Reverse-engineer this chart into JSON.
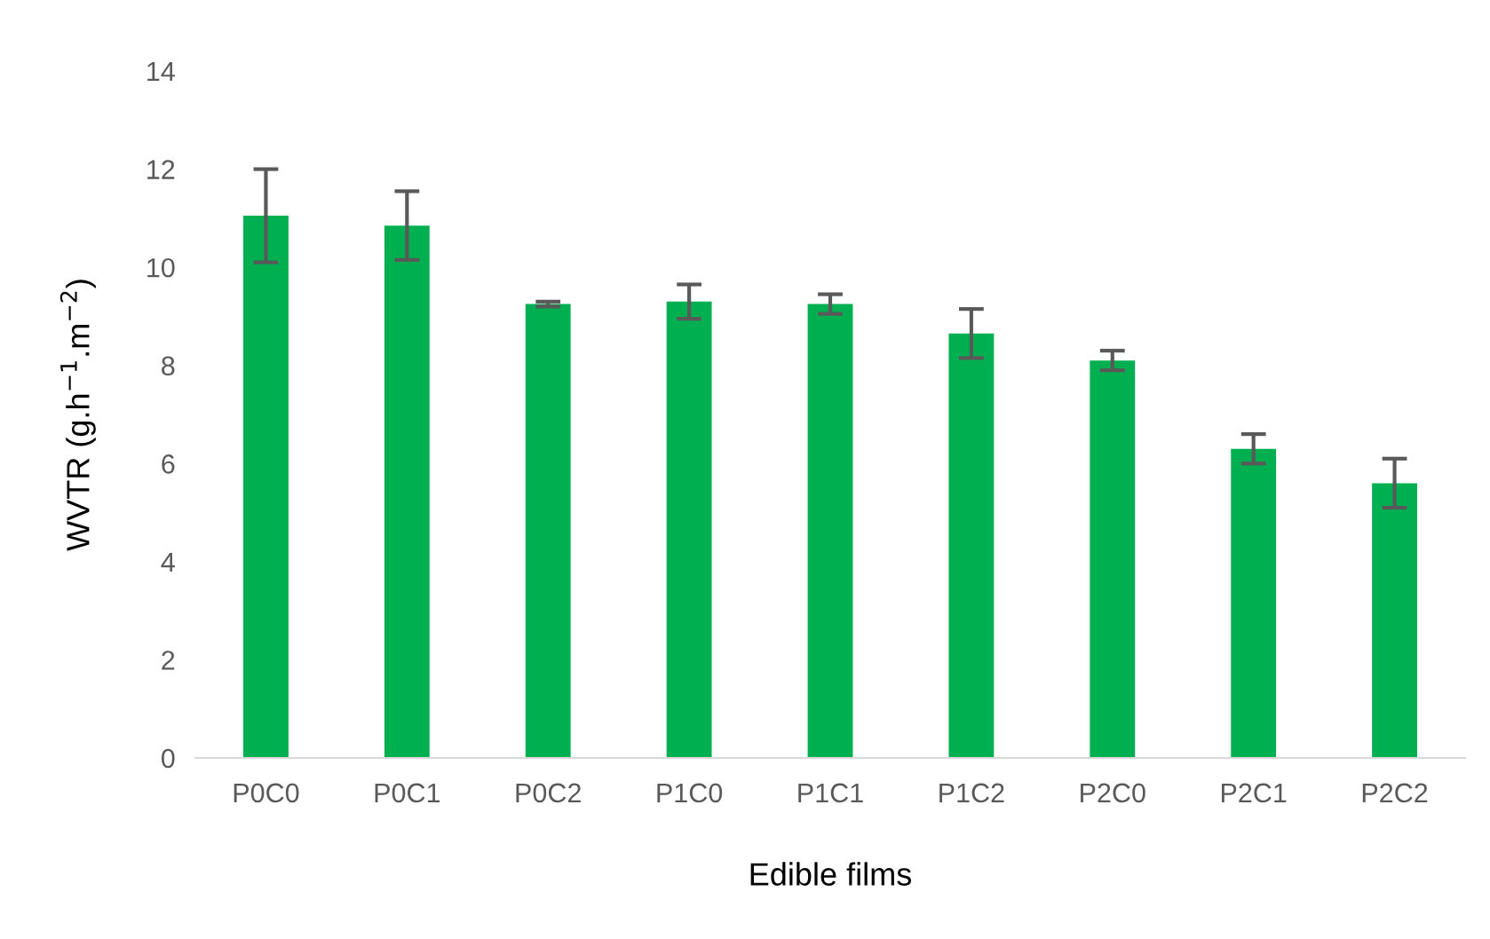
{
  "chart_data": {
    "type": "bar",
    "xlabel": "Edible films",
    "ylabel": "WVTR (g.h$^{−1}$.m$^{−2}$)",
    "categories": [
      "P0C0",
      "P0C1",
      "P0C2",
      "P1C0",
      "P1C1",
      "P1C2",
      "P2C0",
      "P2C1",
      "P2C2"
    ],
    "values": [
      11.05,
      10.85,
      9.25,
      9.3,
      9.25,
      8.65,
      8.1,
      6.3,
      5.6
    ],
    "errors": [
      0.95,
      0.7,
      0.05,
      0.35,
      0.2,
      0.5,
      0.2,
      0.3,
      0.5
    ],
    "color": "#00b050",
    "ylim": [
      0,
      14
    ],
    "yticks": [
      0,
      2,
      4,
      6,
      8,
      10,
      12,
      14
    ],
    "grid": false
  }
}
